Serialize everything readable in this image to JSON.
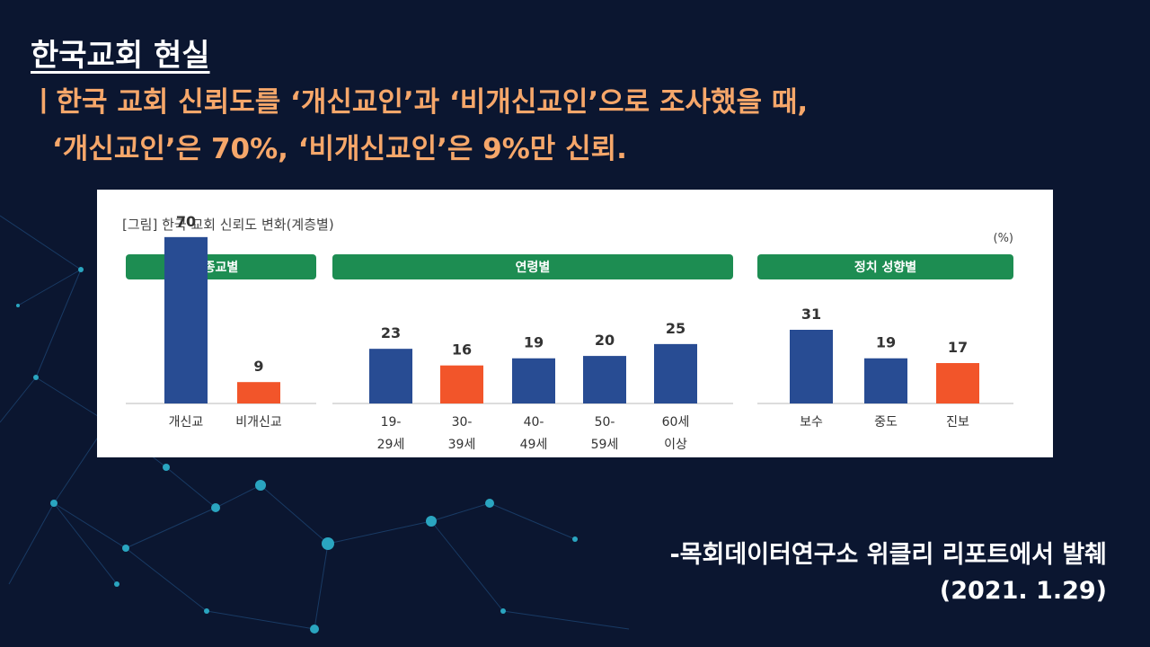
{
  "slide": {
    "title": "한국교회 현실",
    "subtitle_line1": "ㅣ한국 교회 신뢰도를 ‘개신교인’과 ‘비개신교인’으로 조사했을 때,",
    "subtitle_line2": "‘개신교인’은 70%, ‘비개신교인’은 9%만 신뢰.",
    "source_line1": "-목회데이터연구소 위클리 리포트에서 발췌",
    "source_line2": "(2021. 1.29)"
  },
  "colors": {
    "background": "#0b1630",
    "subtitle": "#f6a76a",
    "group_header": "#1d8d52",
    "bar_blue": "#284c93",
    "bar_orange": "#f2552a"
  },
  "chart_data": {
    "type": "bar",
    "title": "[그림] 한국 교회 신뢰도 변화(계층별)",
    "unit": "(%)",
    "groups": [
      {
        "name": "종교별",
        "categories": [
          "개신교",
          "비개신교"
        ],
        "values": [
          70,
          9
        ],
        "highlight": [
          false,
          true
        ]
      },
      {
        "name": "연령별",
        "categories": [
          "19-\n29세",
          "30-\n39세",
          "40-\n49세",
          "50-\n59세",
          "60세\n이상"
        ],
        "values": [
          23,
          16,
          19,
          20,
          25
        ],
        "highlight": [
          false,
          true,
          false,
          false,
          false
        ]
      },
      {
        "name": "정치 성향별",
        "categories": [
          "보수",
          "중도",
          "진보"
        ],
        "values": [
          31,
          19,
          17
        ],
        "highlight": [
          false,
          false,
          true
        ]
      }
    ]
  }
}
